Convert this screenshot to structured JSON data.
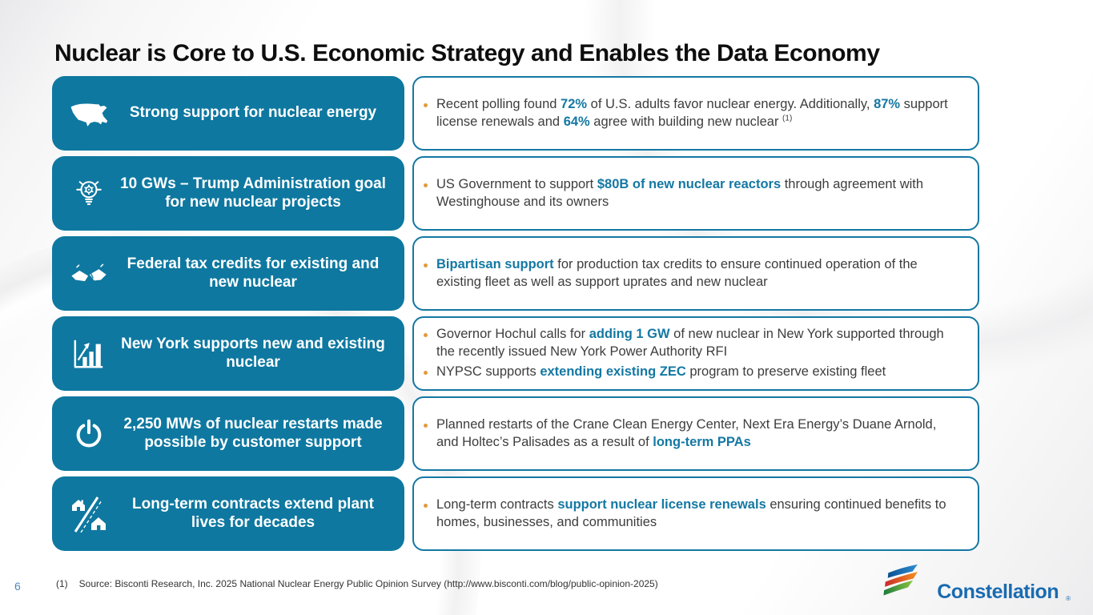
{
  "slide": {
    "title": "Nuclear is Core to U.S. Economic Strategy and Enables the Data Economy",
    "page_number": "6",
    "footnote": {
      "marker": "(1)",
      "text": "Source: Bisconti Research, Inc. 2025 National Nuclear Energy Public Opinion Survey (http://www.bisconti.com/blog/public-opinion-2025)"
    },
    "logo": {
      "text": "Constellation",
      "registered": "®"
    }
  },
  "colors": {
    "teal_box": "#0E78A0",
    "teal_border": "#1478A3",
    "highlight_text": "#1478A3",
    "bullet_dot": "#E09B3D",
    "logo_blue": "#1A6BB0",
    "logo_stripes": [
      "#1B6FB5",
      "#E8542B",
      "#56A646"
    ]
  },
  "rows": [
    {
      "icon": "usa-map-icon",
      "title": "Strong support for nuclear energy",
      "bullets": [
        {
          "segments": [
            {
              "t": "Recent polling found "
            },
            {
              "t": "72%",
              "s": "strong"
            },
            {
              "t": " of U.S. adults favor nuclear energy. Additionally, "
            },
            {
              "t": "87%",
              "s": "strong"
            },
            {
              "t": " support license renewals and "
            },
            {
              "t": "64%",
              "s": "strong"
            },
            {
              "t": " agree with building new nuclear "
            },
            {
              "t": "(1)",
              "s": "sup"
            }
          ]
        }
      ]
    },
    {
      "icon": "lightbulb-gear-icon",
      "title": "10 GWs – Trump Administration goal for new nuclear projects",
      "bullets": [
        {
          "segments": [
            {
              "t": "US Government to support "
            },
            {
              "t": "$80B of new nuclear reactors",
              "s": "strong"
            },
            {
              "t": " through agreement with Westinghouse and its owners"
            }
          ]
        }
      ]
    },
    {
      "icon": "handshake-icon",
      "title": "Federal tax credits for existing and new nuclear",
      "bullets": [
        {
          "segments": [
            {
              "t": "Bipartisan support",
              "s": "strong"
            },
            {
              "t": " for production tax credits to ensure continued operation of the existing fleet as well as support uprates and new nuclear"
            }
          ]
        }
      ]
    },
    {
      "icon": "bar-chart-growth-icon",
      "title": "New York supports new and existing nuclear",
      "bullets": [
        {
          "segments": [
            {
              "t": "Governor Hochul calls for "
            },
            {
              "t": "adding 1 GW",
              "s": "strong"
            },
            {
              "t": " of new nuclear in New York supported through the recently issued New York Power Authority RFI"
            }
          ]
        },
        {
          "segments": [
            {
              "t": "NYPSC supports "
            },
            {
              "t": "extending existing ZEC",
              "s": "strong"
            },
            {
              "t": " program to preserve existing fleet"
            }
          ]
        }
      ]
    },
    {
      "icon": "power-button-icon",
      "title": "2,250 MWs of nuclear restarts made possible by customer support",
      "bullets": [
        {
          "segments": [
            {
              "t": "Planned restarts of the Crane Clean Energy Center, Next Era Energy’s Duane Arnold, and Holtec’s Palisades as a result of "
            },
            {
              "t": "long-term PPAs",
              "s": "strong"
            }
          ]
        }
      ]
    },
    {
      "icon": "homes-road-icon",
      "title": "Long-term contracts extend plant lives for decades",
      "bullets": [
        {
          "segments": [
            {
              "t": "Long-term contracts "
            },
            {
              "t": "support nuclear license renewals",
              "s": "strong"
            },
            {
              "t": " ensuring continued benefits to homes, businesses, and communities"
            }
          ]
        }
      ]
    }
  ]
}
